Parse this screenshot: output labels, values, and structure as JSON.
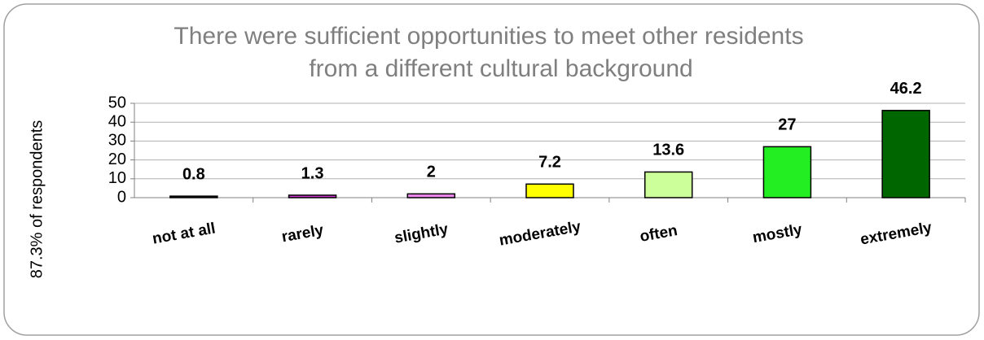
{
  "chart_data": {
    "type": "bar",
    "title": [
      "There were sufficient opportunities to meet other residents",
      "from a different cultural background"
    ],
    "y_label": "87.3% of respondents",
    "categories": [
      "not at all",
      "rarely",
      "slightly",
      "moderately",
      "often",
      "mostly",
      "extremely"
    ],
    "values": [
      0.8,
      1.3,
      2,
      7.2,
      13.6,
      27,
      46.2
    ],
    "colors": [
      "#222222",
      "#cc33cc",
      "#ee88ee",
      "#ffff00",
      "#ccff99",
      "#22ee22",
      "#006600"
    ],
    "ylim": [
      0,
      50
    ],
    "yticks": [
      0,
      10,
      20,
      30,
      40,
      50
    ],
    "grid": true
  }
}
